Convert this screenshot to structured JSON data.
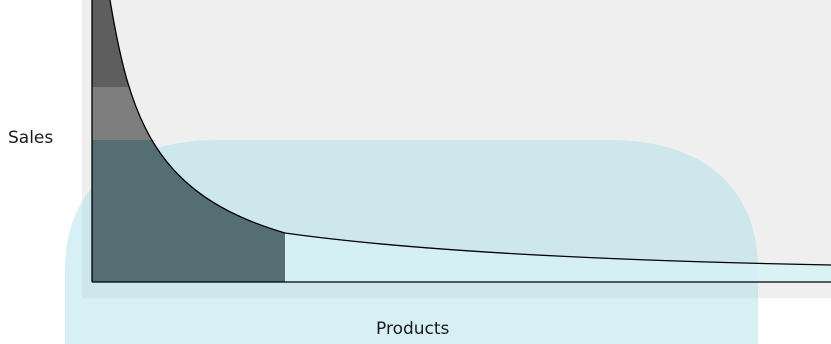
{
  "labels": {
    "y_axis": "Sales",
    "x_axis": "Products"
  },
  "colors": {
    "panel_background": "#efefef",
    "watermark_shape": "#9edce9",
    "head_region_upper": "#5e5e5e",
    "head_region_lower": "#7e7e7e",
    "head_region_overlap": "#556e74",
    "tail_region": "#d6f1f6",
    "curve": "#000000",
    "axes": "#000000"
  }
}
